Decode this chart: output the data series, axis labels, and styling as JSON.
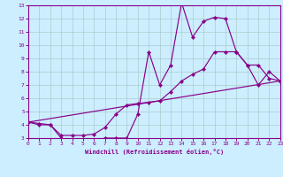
{
  "xlabel": "Windchill (Refroidissement éolien,°C)",
  "bg_color": "#cceeff",
  "grid_color": "#aacccc",
  "line_color": "#880088",
  "xlim": [
    0,
    23
  ],
  "ylim": [
    3,
    13
  ],
  "xticks": [
    0,
    1,
    2,
    3,
    4,
    5,
    6,
    7,
    8,
    9,
    10,
    11,
    12,
    13,
    14,
    15,
    16,
    17,
    18,
    19,
    20,
    21,
    22,
    23
  ],
  "yticks": [
    3,
    4,
    5,
    6,
    7,
    8,
    9,
    10,
    11,
    12,
    13
  ],
  "series1": [
    [
      0,
      4.2
    ],
    [
      1,
      4.1
    ],
    [
      2,
      4.0
    ],
    [
      3,
      3.0
    ],
    [
      4,
      2.8
    ],
    [
      5,
      2.7
    ],
    [
      6,
      2.8
    ],
    [
      7,
      3.0
    ],
    [
      8,
      3.0
    ],
    [
      9,
      3.0
    ],
    [
      10,
      4.8
    ],
    [
      11,
      9.5
    ],
    [
      12,
      7.0
    ],
    [
      13,
      8.5
    ],
    [
      14,
      13.2
    ],
    [
      15,
      10.6
    ],
    [
      16,
      11.8
    ],
    [
      17,
      12.1
    ],
    [
      18,
      12.0
    ],
    [
      19,
      9.5
    ],
    [
      20,
      8.5
    ],
    [
      21,
      7.0
    ],
    [
      22,
      8.0
    ],
    [
      23,
      7.3
    ]
  ],
  "series2": [
    [
      0,
      4.2
    ],
    [
      1,
      4.0
    ],
    [
      2,
      4.0
    ],
    [
      3,
      3.2
    ],
    [
      4,
      3.2
    ],
    [
      5,
      3.2
    ],
    [
      6,
      3.3
    ],
    [
      7,
      3.8
    ],
    [
      8,
      4.8
    ],
    [
      9,
      5.5
    ],
    [
      10,
      5.6
    ],
    [
      11,
      5.7
    ],
    [
      12,
      5.8
    ],
    [
      13,
      6.5
    ],
    [
      14,
      7.3
    ],
    [
      15,
      7.8
    ],
    [
      16,
      8.2
    ],
    [
      17,
      9.5
    ],
    [
      18,
      9.5
    ],
    [
      19,
      9.5
    ],
    [
      20,
      8.5
    ],
    [
      21,
      8.5
    ],
    [
      22,
      7.5
    ],
    [
      23,
      7.3
    ]
  ],
  "series3": [
    [
      0,
      4.2
    ],
    [
      23,
      7.3
    ]
  ]
}
